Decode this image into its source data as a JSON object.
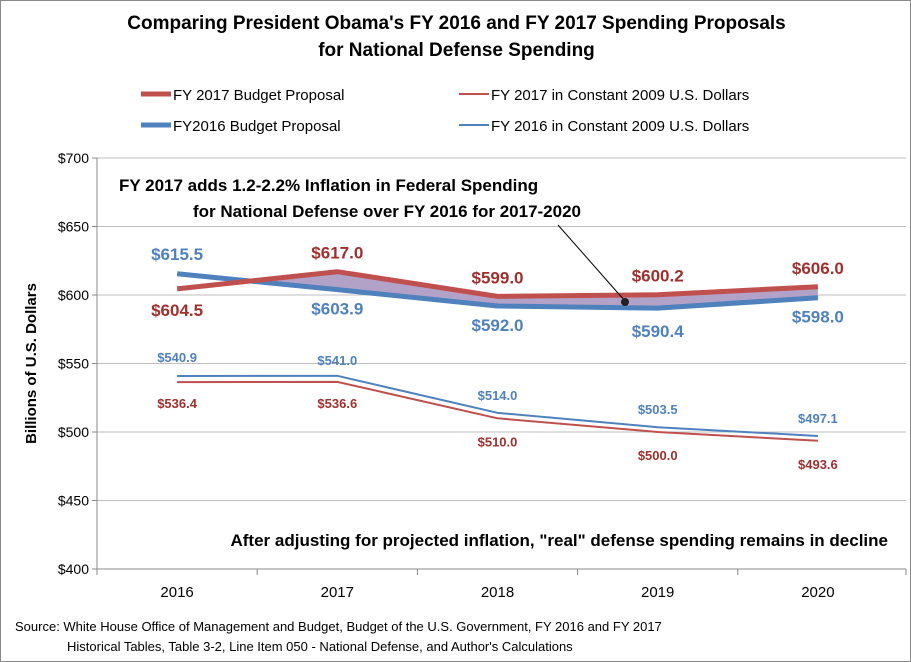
{
  "chart_data": {
    "type": "line",
    "title": [
      "Comparing President Obama's FY 2016 and FY 2017 Spending Proposals",
      "for National Defense Spending"
    ],
    "ylabel": "Billions of U.S. Dollars",
    "xlabel": "",
    "categories": [
      "2016",
      "2017",
      "2018",
      "2019",
      "2020"
    ],
    "ylim": [
      400,
      700
    ],
    "yticks": [
      400,
      450,
      500,
      550,
      600,
      650,
      700
    ],
    "ytick_labels": [
      "$400",
      "$450",
      "$500",
      "$550",
      "$600",
      "$650",
      "$700"
    ],
    "grid": true,
    "legend_position": "top",
    "series": [
      {
        "name": "FY 2017 Budget Proposal",
        "values": [
          604.5,
          617.0,
          599.0,
          600.2,
          606.0
        ],
        "labels": [
          "$604.5",
          "$617.0",
          "$599.0",
          "$600.2",
          "$606.0"
        ],
        "color": "#C0504D",
        "label_color": "#A0302D",
        "thick": true
      },
      {
        "name": "FY2016 Budget Proposal",
        "values": [
          615.5,
          603.9,
          592.0,
          590.4,
          598.0
        ],
        "labels": [
          "$615.5",
          "$603.9",
          "$592.0",
          "$590.4",
          "$598.0"
        ],
        "color": "#4F81BD",
        "label_color": "#4F81BD",
        "thick": true
      },
      {
        "name": "FY 2017 in Constant 2009 U.S. Dollars",
        "values": [
          536.4,
          536.6,
          510.0,
          500.0,
          493.6
        ],
        "labels": [
          "$536.4",
          "$536.6",
          "$510.0",
          "$500.0",
          "$493.6"
        ],
        "color": "#C0504D",
        "label_color": "#A0302D",
        "thick": false
      },
      {
        "name": "FY 2016 in Constant 2009 U.S. Dollars",
        "values": [
          540.9,
          541.0,
          514.0,
          503.5,
          497.1
        ],
        "labels": [
          "$540.9",
          "$541.0",
          "$514.0",
          "$503.5",
          "$497.1"
        ],
        "color": "#4F81BD",
        "label_color": "#4F81BD",
        "thick": false
      }
    ],
    "fill_between_color": "#B3A2C7",
    "annotations": [
      [
        "FY 2017 adds  1.2-2.2%  Inflation in Federal Spending",
        "for National Defense over FY 2016 for 2017-2020"
      ],
      "After adjusting  for projected inflation, \"real\" defense spending remains  in decline"
    ]
  },
  "source": [
    "Source:  White House Office of Management and Budget, Budget of the U.S. Government,  FY 2016 and FY 2017",
    "Historical Tables, Table 3-2, Line Item 050 - National Defense, and Author's Calculations"
  ]
}
